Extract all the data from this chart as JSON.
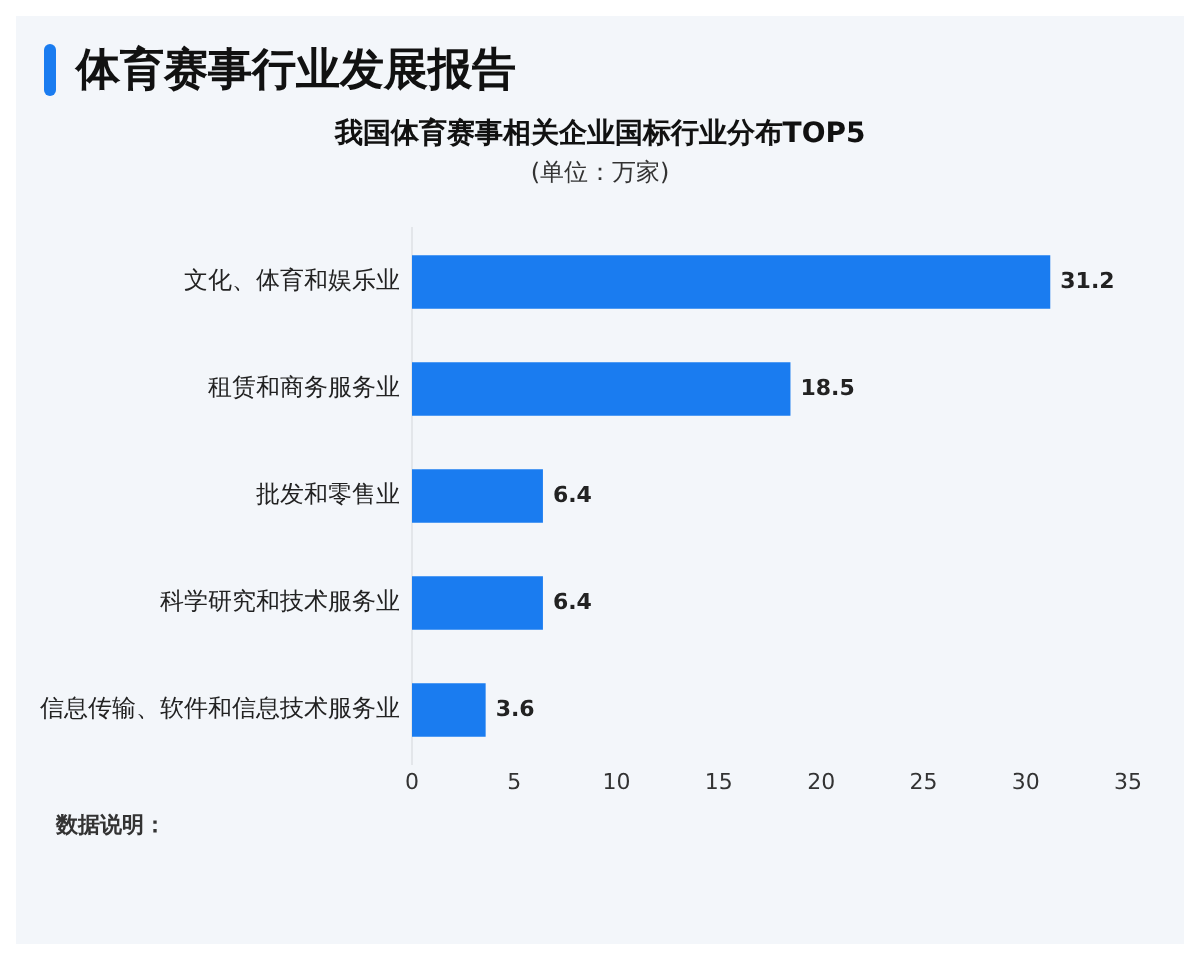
{
  "chart_data": {
    "type": "bar",
    "orientation": "horizontal",
    "title": "体育赛事行业发展报告",
    "subtitle": "我国体育赛事相关企业国标行业分布TOP5",
    "annotations": [
      "(单位：万家)",
      "数据说明："
    ],
    "categories": [
      "文化、体育和娱乐业",
      "租赁和商务服务业",
      "批发和零售业",
      "科学研究和技术服务业",
      "信息传输、软件和信息技术服务业"
    ],
    "values": [
      31.2,
      18.5,
      6.4,
      6.4,
      3.6
    ],
    "color": "#1a7cf0",
    "xlim": [
      0,
      35
    ],
    "xticks": [
      0,
      5,
      10,
      15,
      20,
      25,
      30,
      35
    ],
    "grid": false,
    "data_labels": true,
    "legend": false
  }
}
